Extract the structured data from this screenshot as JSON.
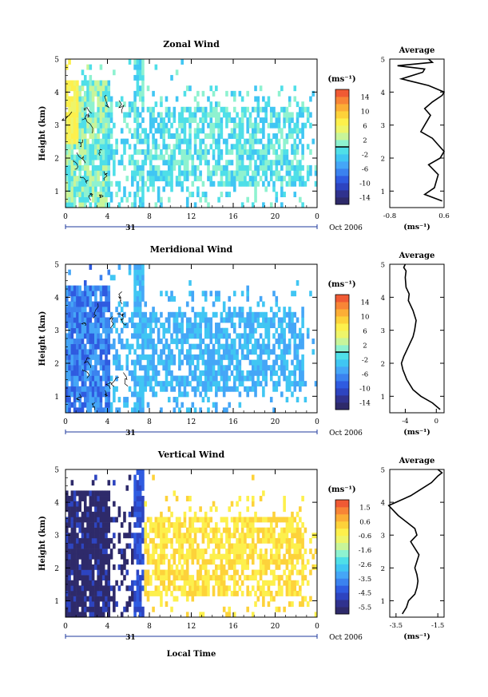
{
  "figure": {
    "xlabel": "Local Time",
    "date_label": "Oct 2006",
    "day_label": "31",
    "x_ticks": [
      "0",
      "4",
      "8",
      "12",
      "16",
      "20",
      "0"
    ],
    "y_ticks": [
      "1",
      "2",
      "3",
      "4",
      "5"
    ],
    "ylabel": "Height (km)",
    "unit_label": "(ms⁻¹)",
    "avg_unit_label": "(ms⁻¹)",
    "avg_title": "Average"
  },
  "chart_data": [
    {
      "type": "heatmap",
      "title": "Zonal Wind",
      "x_range_hours": [
        0,
        24
      ],
      "ylim": [
        0.5,
        5
      ],
      "colorbar": {
        "ticks": [
          "14",
          "10",
          "6",
          "2",
          "-2",
          "-6",
          "-10",
          "-14"
        ],
        "min": -16,
        "max": 16,
        "colors": [
          "#2e2a6a",
          "#30328e",
          "#2d44c0",
          "#2f5be0",
          "#3b82ef",
          "#45a6f7",
          "#40c6f3",
          "#4fdfe8",
          "#8ef2d0",
          "#c8f59a",
          "#eef56a",
          "#fdf04c",
          "#fdd23a",
          "#fcae36",
          "#f88536",
          "#f05a34"
        ],
        "marker_value": 0
      },
      "time_hours": [
        0,
        1,
        2,
        3,
        4,
        5,
        6,
        7,
        8,
        9,
        10,
        11,
        12,
        13,
        14,
        15,
        16,
        17,
        18,
        19,
        20,
        21,
        22,
        23
      ],
      "heights_km": [
        0.6,
        0.8,
        1.0,
        1.2,
        1.4,
        1.6,
        1.8,
        2.0,
        2.2,
        2.4,
        2.6,
        2.8,
        3.0,
        3.2,
        3.4,
        3.6,
        3.8,
        4.0,
        4.2,
        4.4,
        4.6,
        4.8,
        5.0
      ],
      "average": {
        "title": "Average",
        "xlim": [
          -0.8,
          0.6
        ],
        "x_ticks": [
          "-0.8",
          "0.6"
        ],
        "profile": [
          [
            0.7,
            0.55
          ],
          [
            0.9,
            0.1
          ],
          [
            1.1,
            0.35
          ],
          [
            1.3,
            0.4
          ],
          [
            1.5,
            0.45
          ],
          [
            1.8,
            0.2
          ],
          [
            2.0,
            0.5
          ],
          [
            2.2,
            0.6
          ],
          [
            2.4,
            0.45
          ],
          [
            2.6,
            0.3
          ],
          [
            2.8,
            0.0
          ],
          [
            3.0,
            0.1
          ],
          [
            3.3,
            0.25
          ],
          [
            3.5,
            0.1
          ],
          [
            3.7,
            0.3
          ],
          [
            3.9,
            0.55
          ],
          [
            4.0,
            0.6
          ],
          [
            4.2,
            0.2
          ],
          [
            4.4,
            -0.5
          ],
          [
            4.6,
            0.05
          ],
          [
            4.7,
            0.1
          ],
          [
            4.8,
            -0.6
          ],
          [
            4.9,
            0.3
          ],
          [
            5.0,
            0.2
          ]
        ]
      }
    },
    {
      "type": "heatmap",
      "title": "Meridional Wind",
      "x_range_hours": [
        0,
        24
      ],
      "ylim": [
        0.5,
        5
      ],
      "colorbar": {
        "ticks": [
          "14",
          "10",
          "6",
          "2",
          "-2",
          "-6",
          "-10",
          "-14"
        ],
        "min": -16,
        "max": 16,
        "colors": [
          "#2e2a6a",
          "#30328e",
          "#2d44c0",
          "#2f5be0",
          "#3b82ef",
          "#45a6f7",
          "#40c6f3",
          "#4fdfe8",
          "#8ef2d0",
          "#c8f59a",
          "#eef56a",
          "#fdf04c",
          "#fdd23a",
          "#fcae36",
          "#f88536",
          "#f05a34"
        ],
        "marker_value": 0
      },
      "average": {
        "title": "Average",
        "xlim": [
          -6,
          1
        ],
        "x_ticks": [
          "-4",
          "0"
        ],
        "profile": [
          [
            0.6,
            0.5
          ],
          [
            0.8,
            -0.5
          ],
          [
            1.0,
            -2.0
          ],
          [
            1.2,
            -3.0
          ],
          [
            1.5,
            -3.8
          ],
          [
            1.8,
            -4.3
          ],
          [
            2.0,
            -4.5
          ],
          [
            2.2,
            -4.2
          ],
          [
            2.5,
            -3.6
          ],
          [
            2.8,
            -3.0
          ],
          [
            3.0,
            -2.8
          ],
          [
            3.3,
            -2.6
          ],
          [
            3.6,
            -3.0
          ],
          [
            3.9,
            -3.6
          ],
          [
            4.1,
            -3.5
          ],
          [
            4.3,
            -3.9
          ],
          [
            4.6,
            -4.0
          ],
          [
            4.8,
            -3.9
          ],
          [
            4.9,
            -4.2
          ],
          [
            5.0,
            -4.0
          ]
        ]
      }
    },
    {
      "type": "heatmap",
      "title": "Vertical Wind",
      "x_range_hours": [
        0,
        24
      ],
      "ylim": [
        0.5,
        5
      ],
      "colorbar": {
        "ticks": [
          "1.5",
          "0.6",
          "-0.6",
          "-1.6",
          "-2.6",
          "-3.5",
          "-4.5",
          "-5.5"
        ],
        "min": -6,
        "max": 2,
        "colors": [
          "#2e2a6a",
          "#30328e",
          "#2d44c0",
          "#2f5be0",
          "#3b82ef",
          "#45a6f7",
          "#40c6f3",
          "#4fdfe8",
          "#8ef2d0",
          "#c8f59a",
          "#eef56a",
          "#fdf04c",
          "#fdd23a",
          "#fcae36",
          "#f88536",
          "#f05a34"
        ],
        "marker_value": null
      },
      "average": {
        "title": "Average",
        "xlim": [
          -3.8,
          -1.2
        ],
        "x_ticks": [
          "-3.5",
          "-1.5"
        ],
        "profile": [
          [
            0.6,
            -3.2
          ],
          [
            0.8,
            -3.0
          ],
          [
            1.0,
            -2.9
          ],
          [
            1.2,
            -2.6
          ],
          [
            1.4,
            -2.5
          ],
          [
            1.6,
            -2.45
          ],
          [
            1.8,
            -2.5
          ],
          [
            2.0,
            -2.6
          ],
          [
            2.2,
            -2.5
          ],
          [
            2.4,
            -2.4
          ],
          [
            2.6,
            -2.6
          ],
          [
            2.8,
            -2.8
          ],
          [
            3.0,
            -2.5
          ],
          [
            3.2,
            -2.6
          ],
          [
            3.4,
            -3.0
          ],
          [
            3.6,
            -3.4
          ],
          [
            3.8,
            -3.7
          ],
          [
            3.9,
            -3.85
          ],
          [
            4.0,
            -3.5
          ],
          [
            4.2,
            -2.8
          ],
          [
            4.4,
            -2.3
          ],
          [
            4.6,
            -1.8
          ],
          [
            4.8,
            -1.5
          ],
          [
            4.9,
            -1.3
          ],
          [
            5.0,
            -1.5
          ]
        ]
      }
    }
  ]
}
